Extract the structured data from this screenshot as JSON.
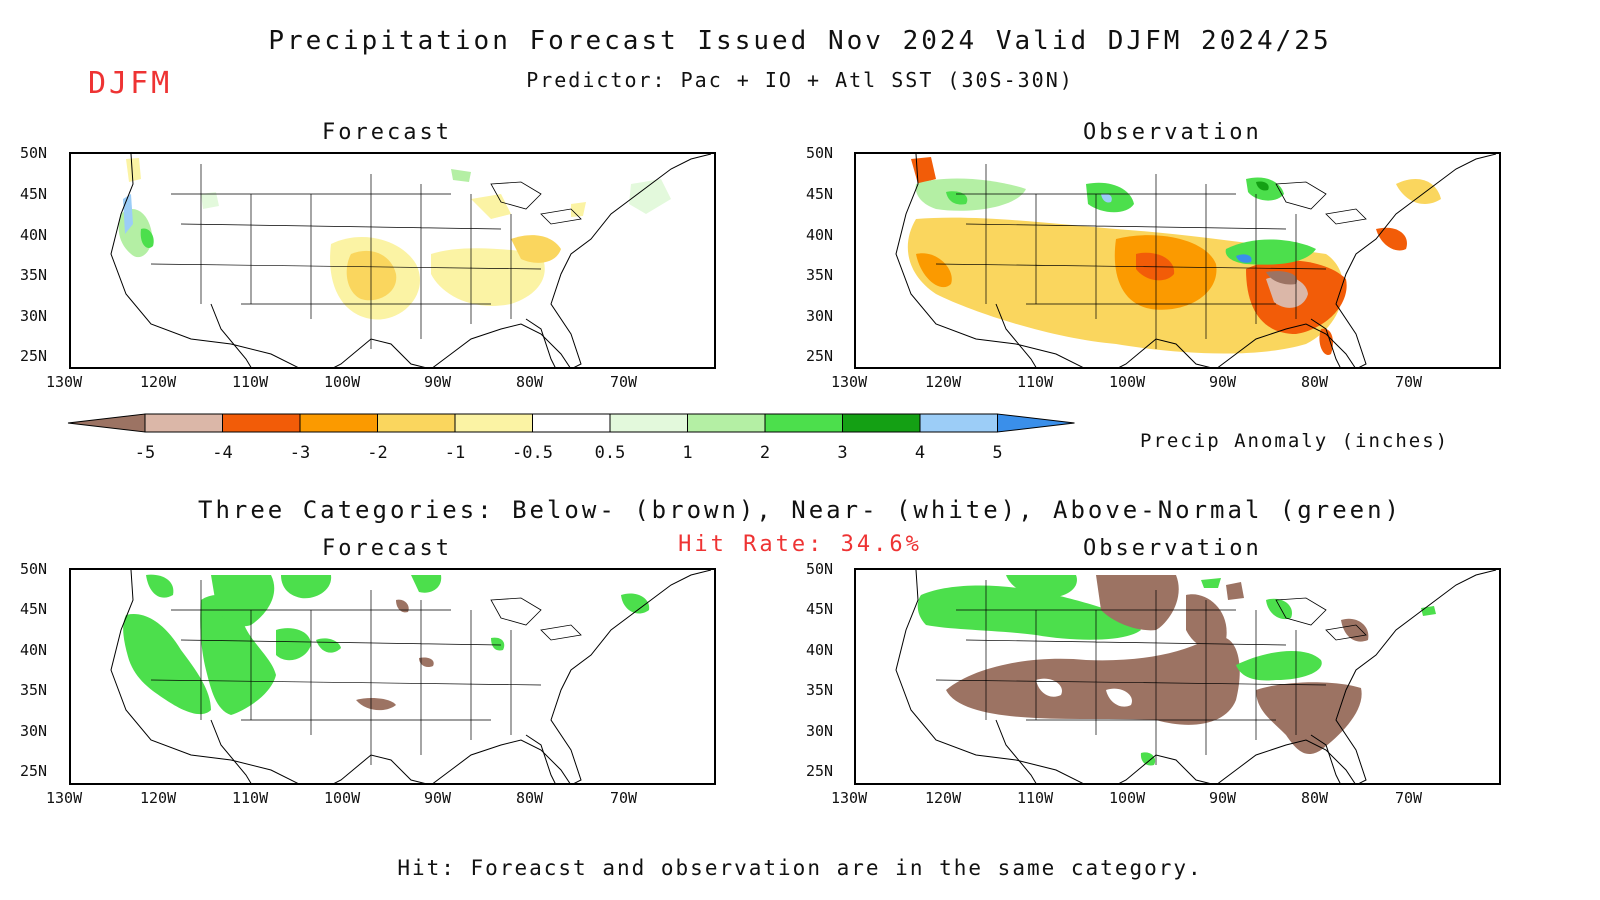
{
  "header": {
    "title": "Precipitation Forecast Issued Nov 2024 Valid DJFM 2024/25",
    "subtitle": "Predictor: Pac + IO + Atl SST (30S-30N)",
    "season_tag": "DJFM"
  },
  "panels": {
    "top_left_title": "Forecast",
    "top_right_title": "Observation",
    "bottom_left_title": "Forecast",
    "bottom_right_title": "Observation"
  },
  "axes": {
    "lat_labels": [
      "50N",
      "45N",
      "40N",
      "35N",
      "30N",
      "25N"
    ],
    "lon_labels": [
      "130W",
      "120W",
      "110W",
      "100W",
      "90W",
      "80W",
      "70W"
    ]
  },
  "colorbar": {
    "title": "Precip Anomaly (inches)",
    "tick_labels": [
      "-5",
      "-4",
      "-3",
      "-2",
      "-1",
      "-0.5",
      "0.5",
      "1",
      "2",
      "3",
      "4",
      "5"
    ],
    "colors": [
      "#9c7363",
      "#dbb7a8",
      "#f25c08",
      "#fb9a00",
      "#fad65e",
      "#fbf3a4",
      "#ffffff",
      "#e3f9dc",
      "#b4efa4",
      "#4cdf4c",
      "#14a014",
      "#9ccdf7",
      "#3a8fea"
    ]
  },
  "categories": {
    "description": "Three Categories: Below- (brown), Near- (white), Above-Normal (green)",
    "hit_rate": "Hit Rate: 34.6%",
    "below_color": "#9c7363",
    "above_color": "#4cdf4c"
  },
  "footer": {
    "note": "Hit: Foreacst and observation are in the same category."
  }
}
